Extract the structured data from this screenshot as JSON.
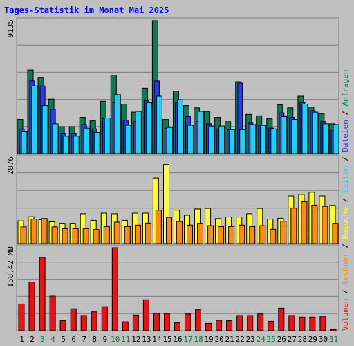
{
  "chart_data": {
    "type": "bar",
    "title": "Tages-Statistik im Monat Mai 2025",
    "categories": [
      "1",
      "2",
      "3",
      "4",
      "5",
      "6",
      "7",
      "8",
      "9",
      "10",
      "11",
      "12",
      "13",
      "14",
      "15",
      "16",
      "17",
      "18",
      "19",
      "20",
      "21",
      "22",
      "23",
      "24",
      "25",
      "26",
      "27",
      "28",
      "29",
      "30",
      "31"
    ],
    "weekend_days": [
      "3",
      "4",
      "10",
      "11",
      "17",
      "18",
      "24",
      "25",
      "31"
    ],
    "colors": {
      "background": "#c0c0c0",
      "title": "#0000ff",
      "axis_text": "#000000",
      "weekend_text": "#008040",
      "anfragen": "#0b7a55",
      "dateien": "#2b3bea",
      "seiten": "#18d2ff",
      "besuche": "#ffff22",
      "rechner": "#ff8c10",
      "volumen": "#ee1111",
      "gridline": "#808080"
    },
    "panels": [
      {
        "name": "anfragen-dateien-seiten",
        "ymax_label": "9135",
        "ylim": [
          0,
          9135
        ],
        "series": [
          {
            "name": "Anfragen",
            "values": [
              2350,
              5750,
              5250,
              3750,
              1850,
              1850,
              2500,
              2250,
              3600,
              5400,
              3400,
              2850,
              4500,
              9135,
              2350,
              4300,
              3300,
              3150,
              2900,
              2500,
              2200,
              4950,
              2700,
              2600,
              2400,
              3350,
              3150,
              3950,
              3200,
              2750,
              2050
            ]
          },
          {
            "name": "Dateien",
            "values": [
              1700,
              5000,
              4650,
              3050,
              1400,
              1400,
              2000,
              1700,
              2400,
              3500,
              2300,
              2200,
              3650,
              5000,
              1750,
              3500,
              2550,
              2200,
              2050,
              1700,
              1650,
              4850,
              2100,
              1950,
              1750,
              2800,
              2500,
              3500,
              2950,
              2200,
              1600
            ]
          },
          {
            "name": "Seiten",
            "values": [
              1500,
              4650,
              3300,
              2050,
              1200,
              1200,
              1750,
              1450,
              2450,
              4050,
              1950,
              2900,
              3500,
              3950,
              1800,
              3700,
              1950,
              2900,
              1900,
              1900,
              1650,
              1650,
              2000,
              1950,
              1700,
              2550,
              2350,
              3400,
              2850,
              2050,
              2000
            ]
          }
        ]
      },
      {
        "name": "besuche-rechner",
        "ymax_label": "2876",
        "ylim": [
          0,
          2876
        ],
        "series": [
          {
            "name": "Besuche",
            "values": [
              760,
              900,
              800,
              730,
              680,
              680,
              1000,
              780,
              1020,
              1000,
              780,
              1020,
              1020,
              2200,
              2650,
              1120,
              950,
              1160,
              1180,
              840,
              890,
              890,
              1000,
              1180,
              820,
              850,
              1600,
              1650,
              1720,
              1600,
              1280
            ]
          },
          {
            "name": "Rechner",
            "values": [
              560,
              820,
              840,
              560,
              500,
              500,
              500,
              470,
              570,
              720,
              570,
              620,
              690,
              1120,
              880,
              740,
              620,
              680,
              600,
              570,
              570,
              620,
              570,
              600,
              480,
              750,
              1190,
              1400,
              1290,
              1250,
              680
            ]
          }
        ]
      },
      {
        "name": "volumen",
        "ymax_label": "158.42 MB",
        "ylim": [
          0,
          158.42
        ],
        "series": [
          {
            "name": "Volumen",
            "values": [
              51,
              93,
              140,
              66,
              19,
              42,
              29,
              36,
              46,
              158.42,
              17,
              30,
              59,
              33,
              33,
              15,
              32,
              40,
              14,
              20,
              19,
              29,
              29,
              32,
              18,
              43,
              29,
              26,
              26,
              28,
              2
            ]
          }
        ]
      }
    ],
    "right_label_series": [
      "Volumen",
      "Rechner",
      "Besuche",
      "Seiten",
      "Dateien",
      "Anfragen"
    ],
    "right_label_separator": " / ",
    "grid": true,
    "legend": "right-vertical"
  }
}
